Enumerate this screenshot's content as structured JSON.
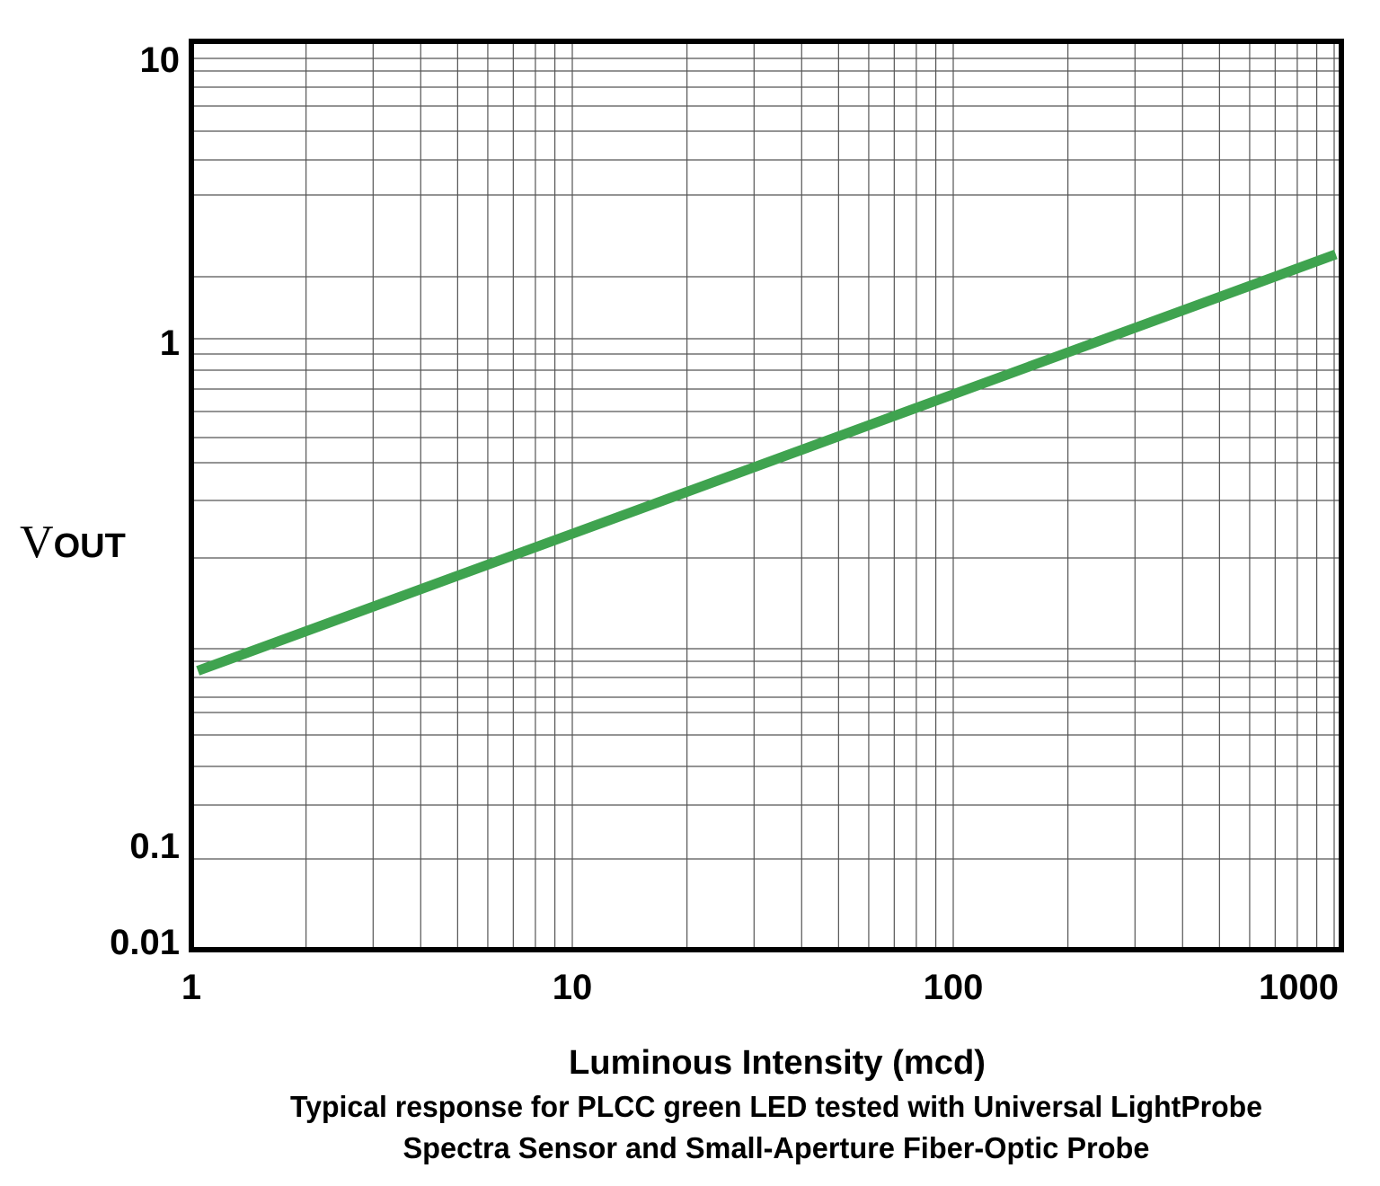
{
  "chart_data": {
    "type": "line",
    "xlabel": "Luminous Intensity (mcd)",
    "ylabel": {
      "main": "V",
      "sub": "OUT"
    },
    "caption": [
      "Typical response for PLCC green LED tested with Universal LightProbe",
      "Spectra Sensor and Small-Aperture Fiber-Optic Probe"
    ],
    "x_scale": "log",
    "y_scale": "log",
    "xlim": [
      1,
      1040
    ],
    "x_ticks": [
      {
        "value": 1,
        "label": "1"
      },
      {
        "value": 10,
        "label": "10"
      },
      {
        "value": 100,
        "label": "100"
      },
      {
        "value": 1000,
        "label": "1000"
      }
    ],
    "y_ticks": [
      {
        "value": 10,
        "label": "10"
      },
      {
        "value": 1,
        "label": "1"
      },
      {
        "value": 0.1,
        "label": "0.1"
      },
      {
        "value": 0.01,
        "label": "0.01"
      }
    ],
    "grid": true,
    "series": [
      {
        "color": "#3fa34f",
        "points": [
          [
            1.04,
            0.23
          ],
          [
            1010,
            2.0
          ]
        ]
      }
    ]
  }
}
